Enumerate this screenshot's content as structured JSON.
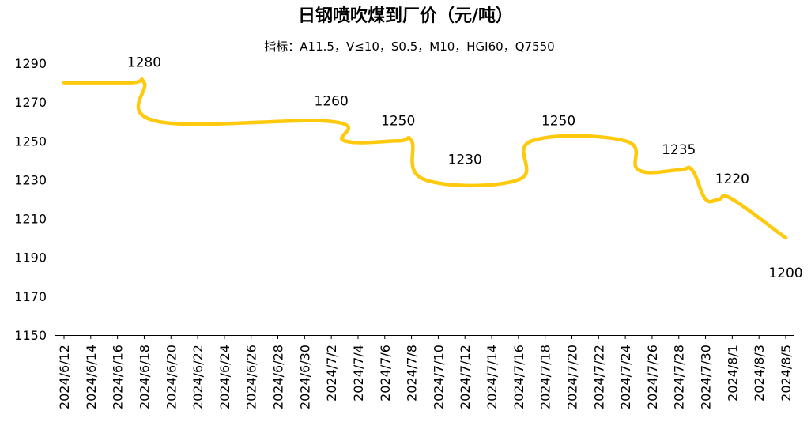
{
  "chart_data": {
    "type": "line",
    "title": "日钢喷吹煤到厂价（元/吨）",
    "subtitle": "指标：A11.5，V≤10，S0.5，M10，HGI60，Q7550",
    "xlabel": "",
    "ylabel": "",
    "ylim": [
      1150,
      1290
    ],
    "yticks": [
      1150,
      1170,
      1190,
      1210,
      1230,
      1250,
      1270,
      1290
    ],
    "grid": false,
    "x_tick_labels": [
      "2024/6/12",
      "2024/6/14",
      "2024/6/16",
      "2024/6/18",
      "2024/6/20",
      "2024/6/22",
      "2024/6/24",
      "2024/6/26",
      "2024/6/28",
      "2024/6/30",
      "2024/7/2",
      "2024/7/4",
      "2024/7/6",
      "2024/7/8",
      "2024/7/10",
      "2024/7/12",
      "2024/7/14",
      "2024/7/16",
      "2024/7/18",
      "2024/7/20",
      "2024/7/22",
      "2024/7/24",
      "2024/7/26",
      "2024/7/28",
      "2024/7/30",
      "2024/8/1",
      "2024/8/3",
      "2024/8/5"
    ],
    "series": [
      {
        "color": "#FFC90E",
        "x": [
          "2024/6/12",
          "2024/6/17",
          "2024/6/18",
          "2024/6/19",
          "2024/7/2",
          "2024/7/3",
          "2024/7/7",
          "2024/7/8",
          "2024/7/9",
          "2024/7/16",
          "2024/7/17",
          "2024/7/24",
          "2024/7/25",
          "2024/7/28",
          "2024/7/29",
          "2024/7/30",
          "2024/7/31",
          "2024/8/1",
          "2024/8/5"
        ],
        "values": [
          1280,
          1280,
          1280,
          1260,
          1260,
          1250,
          1250,
          1250,
          1230,
          1230,
          1250,
          1250,
          1235,
          1235,
          1235,
          1220,
          1220,
          1220,
          1200
        ]
      }
    ],
    "data_labels": [
      {
        "x": "2024/6/18",
        "text": "1280"
      },
      {
        "x": "2024/7/2",
        "text": "1260"
      },
      {
        "x": "2024/7/7",
        "text": "1250"
      },
      {
        "x": "2024/7/12",
        "text": "1230"
      },
      {
        "x": "2024/7/19",
        "text": "1250"
      },
      {
        "x": "2024/7/28",
        "text": "1235"
      },
      {
        "x": "2024/8/1",
        "text": "1220"
      },
      {
        "x": "2024/8/5",
        "text": "1200"
      }
    ]
  }
}
